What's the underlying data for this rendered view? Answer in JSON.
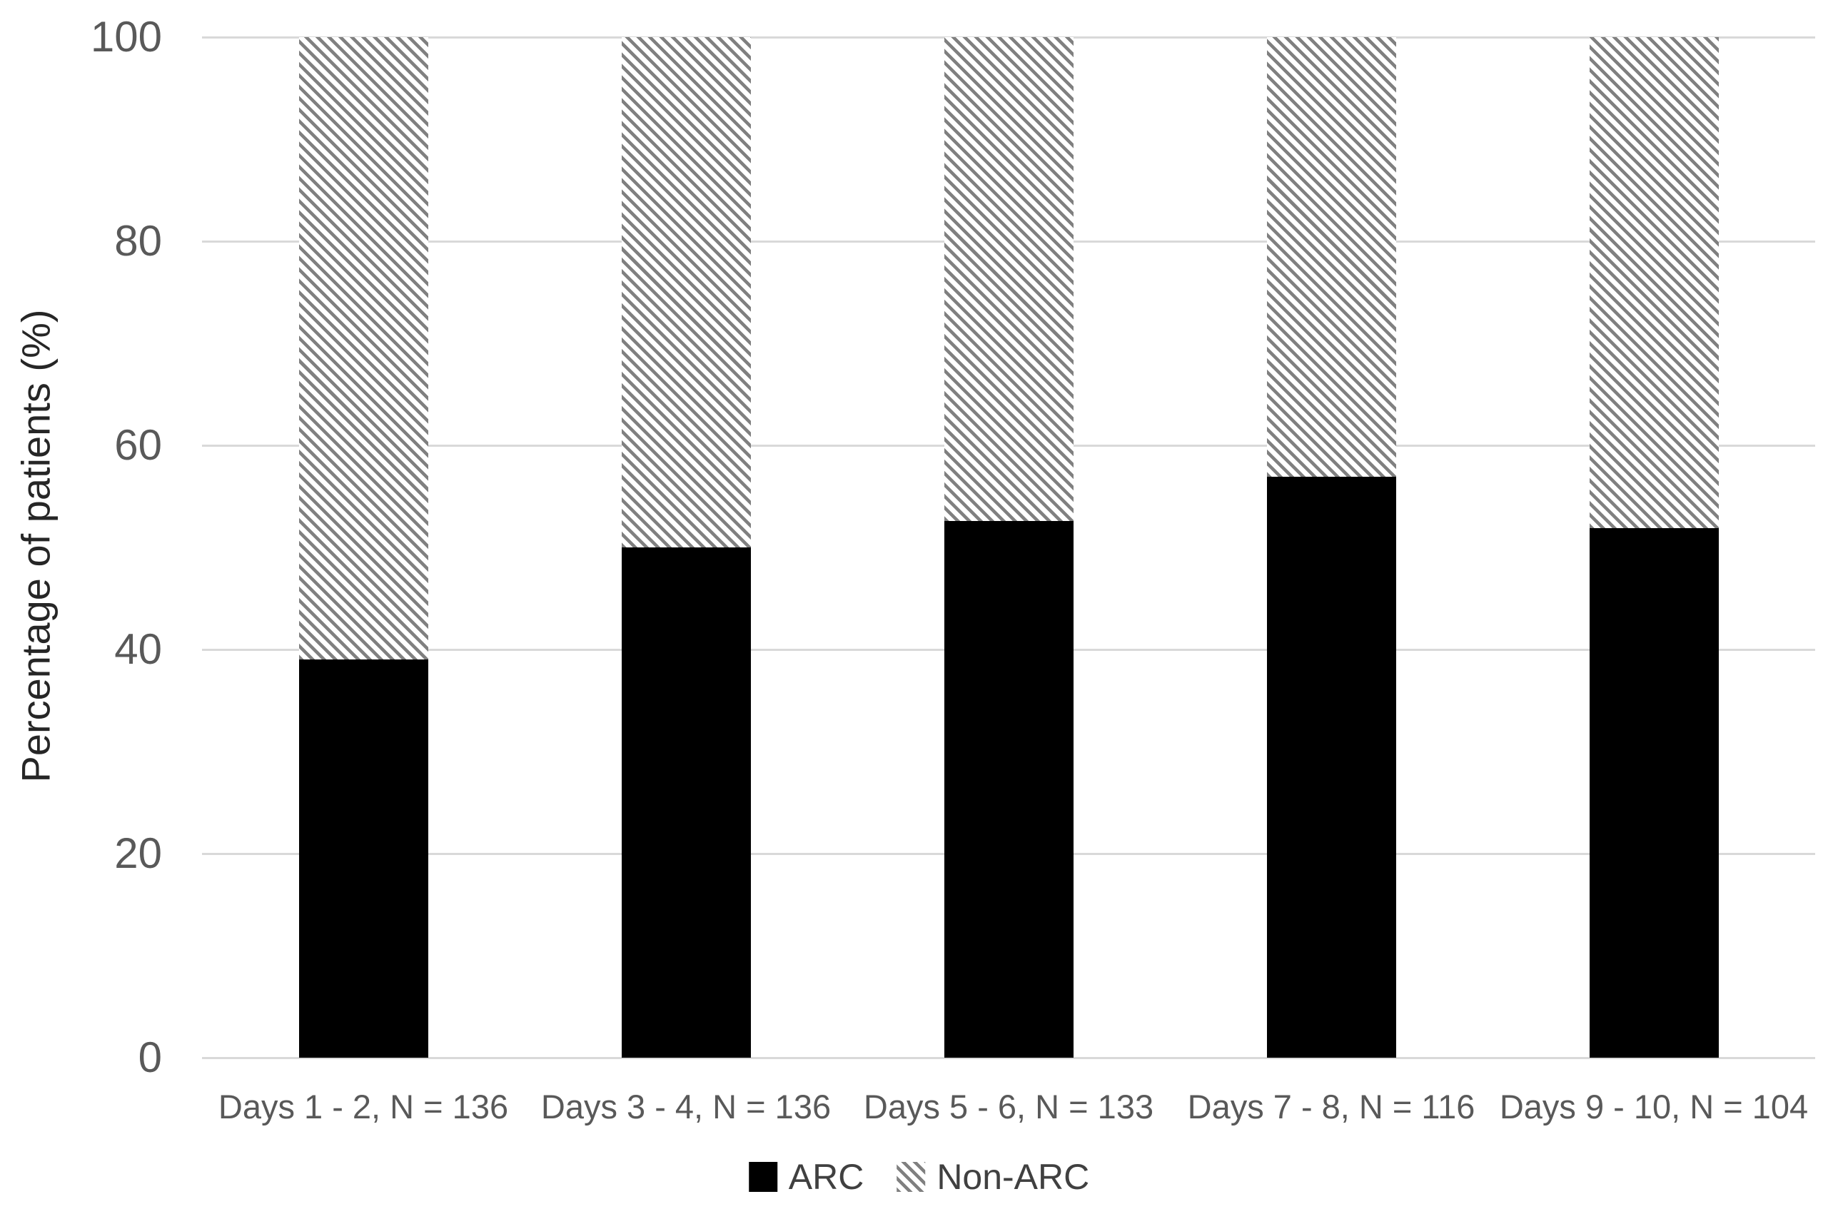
{
  "chart_data": {
    "type": "bar",
    "subtype": "stacked-percentage",
    "title": "",
    "ylabel": "Percentage of patients (%)",
    "xlabel": "",
    "ylim": [
      0,
      100
    ],
    "yticks": [
      0,
      20,
      40,
      60,
      80,
      100
    ],
    "grid": "horizontal",
    "legend_position": "bottom-center",
    "categories": [
      "Days 1 - 2, N = 136",
      "Days 3 - 4, N = 136",
      "Days 5 - 6, N = 133",
      "Days 7 - 8, N = 116",
      "Days 9 - 10, N = 104"
    ],
    "series": [
      {
        "name": "ARC",
        "fill": "solid-black",
        "values": [
          39,
          50,
          52.6,
          56.9,
          51.9
        ]
      },
      {
        "name": "Non-ARC",
        "fill": "diagonal-hatch",
        "values": [
          61,
          50,
          47.4,
          43.1,
          48.1
        ]
      }
    ]
  },
  "legend": {
    "items": [
      {
        "label": "ARC",
        "swatch": "solid-black"
      },
      {
        "label": "Non-ARC",
        "swatch": "diagonal-hatch"
      }
    ]
  },
  "colors": {
    "bar_black": "#000000",
    "hatch_gray": "#808080",
    "gridline": "#d9d9d9",
    "tick_label": "#595959",
    "category_label": "#595959",
    "legend_text": "#404040",
    "axis_title": "#262626",
    "background": "#ffffff"
  }
}
